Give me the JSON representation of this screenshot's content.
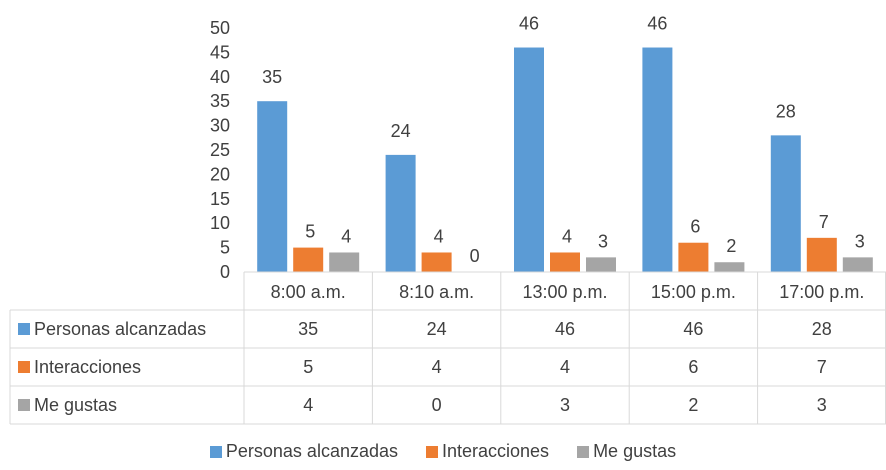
{
  "chart_data": {
    "type": "bar",
    "categories": [
      "8:00 a.m.",
      "8:10 a.m.",
      "13:00 p.m.",
      "15:00 p.m.",
      "17:00 p.m."
    ],
    "series": [
      {
        "name": "Personas alcanzadas",
        "values": [
          35,
          24,
          46,
          46,
          28
        ],
        "color": "#5b9bd5"
      },
      {
        "name": "Interacciones",
        "values": [
          5,
          4,
          4,
          6,
          7
        ],
        "color": "#ed7d31"
      },
      {
        "name": "Me gustas",
        "values": [
          4,
          0,
          3,
          2,
          3
        ],
        "color": "#a5a5a5"
      }
    ],
    "ylim": [
      0,
      50
    ],
    "yticks": [
      0,
      5,
      10,
      15,
      20,
      25,
      30,
      35,
      40,
      45,
      50
    ],
    "grid": false,
    "data_table": true,
    "legend_position": "bottom"
  }
}
